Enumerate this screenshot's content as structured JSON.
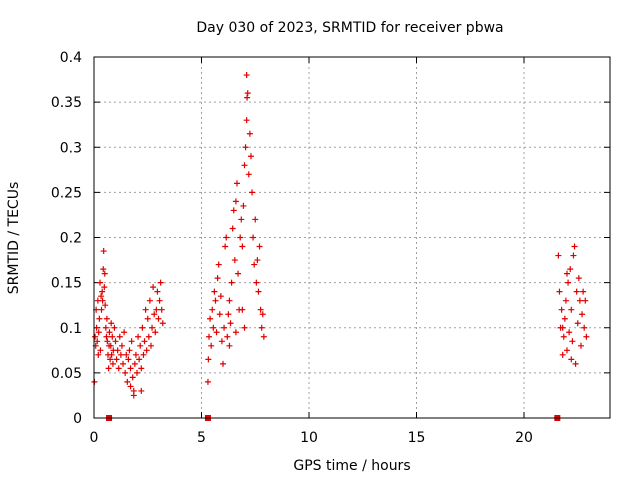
{
  "chart_data": {
    "type": "scatter",
    "title": "Day 030 of 2023, SRMTID for receiver pbwa",
    "xlabel": "GPS time / hours",
    "ylabel": "SRMTID / TECUs",
    "xlim": [
      0,
      24
    ],
    "ylim": [
      0,
      0.4
    ],
    "grid": true,
    "x_ticks": [
      0,
      5,
      10,
      15,
      20
    ],
    "x_tick_labels": [
      "0",
      "5",
      "10",
      "15",
      "20"
    ],
    "y_ticks": [
      0,
      0.05,
      0.1,
      0.15,
      0.2,
      0.25,
      0.3,
      0.35,
      0.4
    ],
    "y_tick_labels": [
      "0",
      "0.05",
      "0.1",
      "0.15",
      "0.2",
      "0.25",
      "0.3",
      "0.35",
      "0.4"
    ],
    "marker": "+",
    "color": "#e00000",
    "points": [
      [
        0.02,
        0.04
      ],
      [
        0.05,
        0.09
      ],
      [
        0.08,
        0.08
      ],
      [
        0.1,
        0.12
      ],
      [
        0.12,
        0.1
      ],
      [
        0.15,
        0.085
      ],
      [
        0.18,
        0.13
      ],
      [
        0.2,
        0.07
      ],
      [
        0.22,
        0.095
      ],
      [
        0.25,
        0.11
      ],
      [
        0.28,
        0.15
      ],
      [
        0.3,
        0.075
      ],
      [
        0.33,
        0.135
      ],
      [
        0.35,
        0.12
      ],
      [
        0.38,
        0.14
      ],
      [
        0.4,
        0.13
      ],
      [
        0.43,
        0.165
      ],
      [
        0.45,
        0.185
      ],
      [
        0.48,
        0.145
      ],
      [
        0.5,
        0.16
      ],
      [
        0.52,
        0.125
      ],
      [
        0.55,
        0.1
      ],
      [
        0.58,
        0.09
      ],
      [
        0.6,
        0.11
      ],
      [
        0.62,
        0.085
      ],
      [
        0.65,
        0.07
      ],
      [
        0.68,
        0.055
      ],
      [
        0.7,
        0.08
      ],
      [
        0.72,
        0.095
      ],
      [
        0.75,
        0.065
      ],
      [
        0.78,
        0.08
      ],
      [
        0.8,
        0.105
      ],
      [
        0.82,
        0.07
      ],
      [
        0.85,
        0.09
      ],
      [
        0.88,
        0.06
      ],
      [
        0.9,
        0.075
      ],
      [
        0.95,
        0.1
      ],
      [
        1.0,
        0.085
      ],
      [
        1.05,
        0.065
      ],
      [
        1.1,
        0.075
      ],
      [
        1.15,
        0.055
      ],
      [
        1.2,
        0.09
      ],
      [
        1.25,
        0.07
      ],
      [
        1.3,
        0.08
      ],
      [
        1.35,
        0.06
      ],
      [
        1.4,
        0.095
      ],
      [
        1.45,
        0.05
      ],
      [
        1.5,
        0.07
      ],
      [
        1.55,
        0.04
      ],
      [
        1.6,
        0.065
      ],
      [
        1.65,
        0.075
      ],
      [
        1.7,
        0.055
      ],
      [
        1.75,
        0.085
      ],
      [
        1.8,
        0.045
      ],
      [
        1.85,
        0.03
      ],
      [
        1.9,
        0.06
      ],
      [
        1.95,
        0.07
      ],
      [
        2.0,
        0.05
      ],
      [
        2.05,
        0.09
      ],
      [
        2.1,
        0.065
      ],
      [
        2.15,
        0.08
      ],
      [
        2.2,
        0.055
      ],
      [
        2.25,
        0.1
      ],
      [
        2.3,
        0.07
      ],
      [
        2.35,
        0.085
      ],
      [
        2.4,
        0.12
      ],
      [
        2.45,
        0.075
      ],
      [
        2.5,
        0.11
      ],
      [
        2.55,
        0.09
      ],
      [
        2.6,
        0.13
      ],
      [
        2.65,
        0.08
      ],
      [
        2.7,
        0.1
      ],
      [
        2.75,
        0.145
      ],
      [
        2.8,
        0.115
      ],
      [
        2.85,
        0.095
      ],
      [
        2.9,
        0.12
      ],
      [
        2.95,
        0.14
      ],
      [
        3.0,
        0.11
      ],
      [
        3.05,
        0.13
      ],
      [
        3.1,
        0.15
      ],
      [
        3.15,
        0.12
      ],
      [
        3.2,
        0.105
      ],
      [
        1.85,
        0.025
      ],
      [
        1.7,
        0.035
      ],
      [
        2.2,
        0.03
      ],
      [
        5.3,
        0.04
      ],
      [
        5.32,
        0.065
      ],
      [
        5.35,
        0.09
      ],
      [
        5.4,
        0.11
      ],
      [
        5.45,
        0.08
      ],
      [
        5.5,
        0.12
      ],
      [
        5.55,
        0.1
      ],
      [
        5.6,
        0.14
      ],
      [
        5.65,
        0.13
      ],
      [
        5.7,
        0.095
      ],
      [
        5.75,
        0.155
      ],
      [
        5.8,
        0.17
      ],
      [
        5.85,
        0.115
      ],
      [
        5.9,
        0.135
      ],
      [
        5.95,
        0.085
      ],
      [
        6.0,
        0.06
      ],
      [
        6.05,
        0.1
      ],
      [
        6.1,
        0.19
      ],
      [
        6.15,
        0.2
      ],
      [
        6.2,
        0.09
      ],
      [
        6.25,
        0.115
      ],
      [
        6.3,
        0.13
      ],
      [
        6.35,
        0.105
      ],
      [
        6.4,
        0.15
      ],
      [
        6.45,
        0.21
      ],
      [
        6.5,
        0.23
      ],
      [
        6.55,
        0.175
      ],
      [
        6.6,
        0.24
      ],
      [
        6.65,
        0.26
      ],
      [
        6.7,
        0.16
      ],
      [
        6.75,
        0.12
      ],
      [
        6.8,
        0.2
      ],
      [
        6.85,
        0.22
      ],
      [
        6.9,
        0.19
      ],
      [
        6.95,
        0.235
      ],
      [
        7.0,
        0.28
      ],
      [
        7.05,
        0.3
      ],
      [
        7.1,
        0.33
      ],
      [
        7.12,
        0.355
      ],
      [
        7.15,
        0.36
      ],
      [
        7.1,
        0.38
      ],
      [
        7.2,
        0.27
      ],
      [
        7.25,
        0.315
      ],
      [
        7.3,
        0.29
      ],
      [
        7.35,
        0.25
      ],
      [
        7.4,
        0.2
      ],
      [
        7.45,
        0.17
      ],
      [
        7.5,
        0.22
      ],
      [
        7.55,
        0.15
      ],
      [
        7.6,
        0.175
      ],
      [
        7.65,
        0.14
      ],
      [
        7.7,
        0.19
      ],
      [
        7.75,
        0.12
      ],
      [
        7.8,
        0.1
      ],
      [
        7.85,
        0.115
      ],
      [
        7.9,
        0.09
      ],
      [
        7.0,
        0.1
      ],
      [
        6.9,
        0.12
      ],
      [
        6.6,
        0.095
      ],
      [
        6.3,
        0.08
      ],
      [
        21.6,
        0.18
      ],
      [
        21.65,
        0.14
      ],
      [
        21.7,
        0.1
      ],
      [
        21.75,
        0.12
      ],
      [
        21.8,
        0.07
      ],
      [
        21.85,
        0.09
      ],
      [
        21.9,
        0.11
      ],
      [
        21.95,
        0.13
      ],
      [
        22.0,
        0.075
      ],
      [
        22.05,
        0.15
      ],
      [
        22.1,
        0.095
      ],
      [
        22.15,
        0.165
      ],
      [
        22.2,
        0.12
      ],
      [
        22.25,
        0.085
      ],
      [
        22.3,
        0.18
      ],
      [
        22.35,
        0.19
      ],
      [
        22.4,
        0.06
      ],
      [
        22.45,
        0.14
      ],
      [
        22.5,
        0.105
      ],
      [
        22.55,
        0.155
      ],
      [
        22.6,
        0.13
      ],
      [
        22.65,
        0.08
      ],
      [
        22.7,
        0.115
      ],
      [
        22.75,
        0.14
      ],
      [
        22.8,
        0.1
      ],
      [
        22.85,
        0.13
      ],
      [
        22.9,
        0.09
      ],
      [
        22.2,
        0.065
      ],
      [
        22.0,
        0.16
      ],
      [
        21.8,
        0.1
      ]
    ],
    "zero_markers": [
      0.7,
      5.3,
      21.55
    ]
  }
}
